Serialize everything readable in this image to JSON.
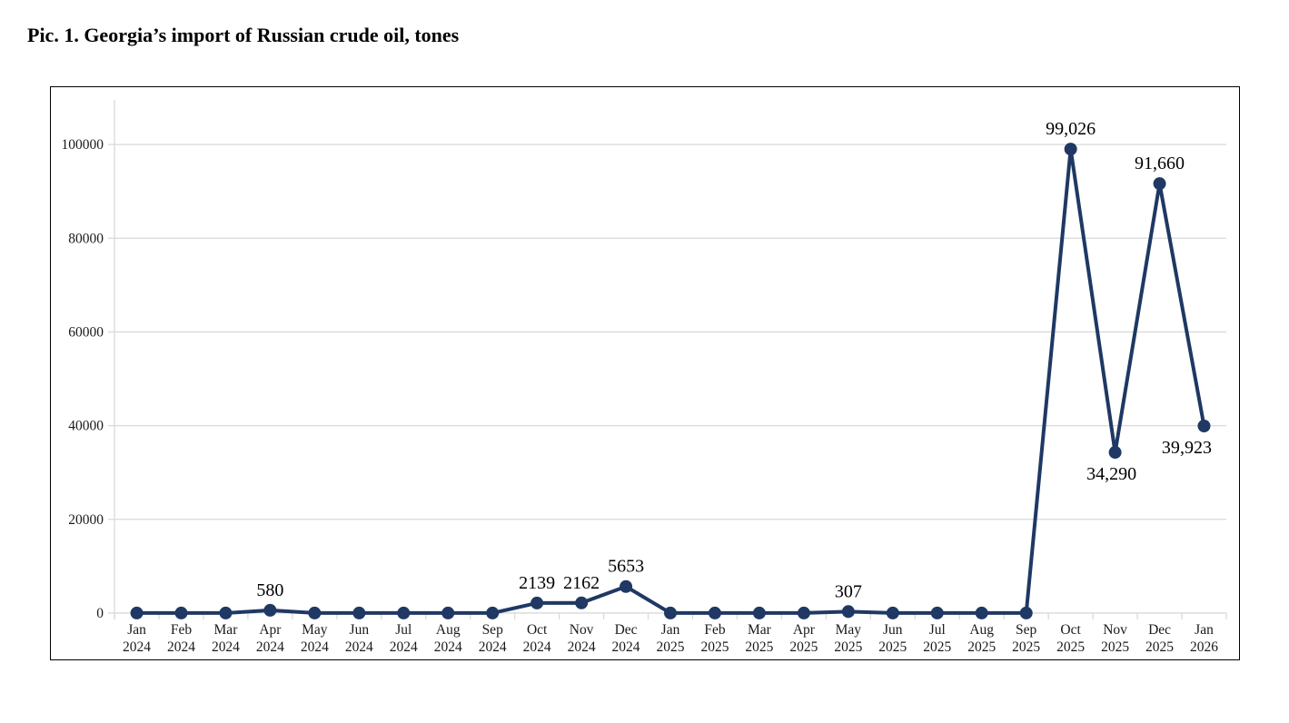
{
  "chart_data": {
    "type": "line",
    "title": "Pic. 1. Georgia’s import of Russian crude oil, tones",
    "xlabel": "",
    "ylabel": "",
    "legend": "none",
    "grid": "horizontal",
    "colors": {
      "series": "#1f3864",
      "gridline": "#d9d9d9",
      "axis_text": "#1a1a1a",
      "data_label_text": "#000000",
      "frame_border": "#000000",
      "background": "#ffffff"
    },
    "y_axis": {
      "min": 0,
      "max": 100000,
      "step": 20000,
      "tick_labels": [
        "0",
        "20000",
        "40000",
        "60000",
        "80000",
        "100000"
      ]
    },
    "points": [
      {
        "month": "Jan",
        "year": "2024",
        "value": 0,
        "label": null,
        "label_pos": null,
        "label_dx": 0
      },
      {
        "month": "Feb",
        "year": "2024",
        "value": 0,
        "label": null,
        "label_pos": null,
        "label_dx": 0
      },
      {
        "month": "Mar",
        "year": "2024",
        "value": 0,
        "label": null,
        "label_pos": null,
        "label_dx": 0
      },
      {
        "month": "Apr",
        "year": "2024",
        "value": 580,
        "label": "580",
        "label_pos": "above",
        "label_dx": 0
      },
      {
        "month": "May",
        "year": "2024",
        "value": 0,
        "label": null,
        "label_pos": null,
        "label_dx": 0
      },
      {
        "month": "Jun",
        "year": "2024",
        "value": 0,
        "label": null,
        "label_pos": null,
        "label_dx": 0
      },
      {
        "month": "Jul",
        "year": "2024",
        "value": 0,
        "label": null,
        "label_pos": null,
        "label_dx": 0
      },
      {
        "month": "Aug",
        "year": "2024",
        "value": 0,
        "label": null,
        "label_pos": null,
        "label_dx": 0
      },
      {
        "month": "Sep",
        "year": "2024",
        "value": 0,
        "label": null,
        "label_pos": null,
        "label_dx": 0
      },
      {
        "month": "Oct",
        "year": "2024",
        "value": 2139,
        "label": "2139",
        "label_pos": "above",
        "label_dx": 0
      },
      {
        "month": "Nov",
        "year": "2024",
        "value": 2162,
        "label": "2162",
        "label_pos": "above",
        "label_dx": 0
      },
      {
        "month": "Dec",
        "year": "2024",
        "value": 5653,
        "label": "5653",
        "label_pos": "above",
        "label_dx": 0
      },
      {
        "month": "Jan",
        "year": "2025",
        "value": 0,
        "label": null,
        "label_pos": null,
        "label_dx": 0
      },
      {
        "month": "Feb",
        "year": "2025",
        "value": 0,
        "label": null,
        "label_pos": null,
        "label_dx": 0
      },
      {
        "month": "Mar",
        "year": "2025",
        "value": 0,
        "label": null,
        "label_pos": null,
        "label_dx": 0
      },
      {
        "month": "Apr",
        "year": "2025",
        "value": 0,
        "label": null,
        "label_pos": null,
        "label_dx": 0
      },
      {
        "month": "May",
        "year": "2025",
        "value": 307,
        "label": "307",
        "label_pos": "above",
        "label_dx": 0
      },
      {
        "month": "Jun",
        "year": "2025",
        "value": 0,
        "label": null,
        "label_pos": null,
        "label_dx": 0
      },
      {
        "month": "Jul",
        "year": "2025",
        "value": 0,
        "label": null,
        "label_pos": null,
        "label_dx": 0
      },
      {
        "month": "Aug",
        "year": "2025",
        "value": 0,
        "label": null,
        "label_pos": null,
        "label_dx": 0
      },
      {
        "month": "Sep",
        "year": "2025",
        "value": 0,
        "label": null,
        "label_pos": null,
        "label_dx": 0
      },
      {
        "month": "Oct",
        "year": "2025",
        "value": 99026,
        "label": "99,026",
        "label_pos": "above",
        "label_dx": 0
      },
      {
        "month": "Nov",
        "year": "2025",
        "value": 34290,
        "label": "34,290",
        "label_pos": "below",
        "label_dx": -4
      },
      {
        "month": "Dec",
        "year": "2025",
        "value": 91660,
        "label": "91,660",
        "label_pos": "above",
        "label_dx": 0
      },
      {
        "month": "Jan",
        "year": "2026",
        "value": 39923,
        "label": "39,923",
        "label_pos": "below",
        "label_dx": -19
      }
    ]
  }
}
